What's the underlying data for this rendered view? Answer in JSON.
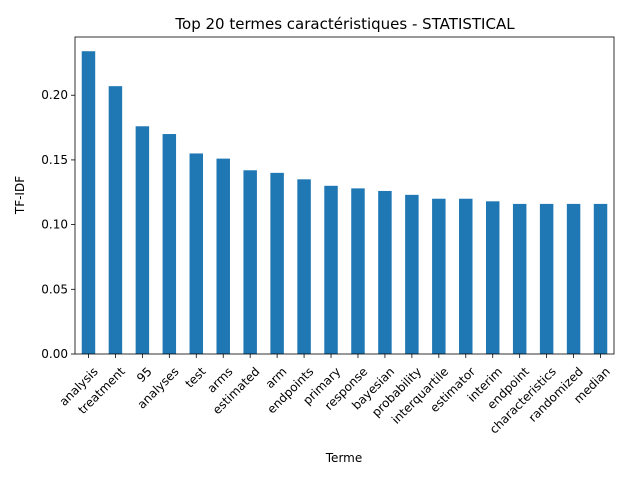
{
  "chart_data": {
    "type": "bar",
    "title": "Top 20 termes caractéristiques - STATISTICAL",
    "xlabel": "Terme",
    "ylabel": "TF-IDF",
    "ylim": [
      0,
      0.245
    ],
    "yticks": [
      0.0,
      0.05,
      0.1,
      0.15,
      0.2
    ],
    "ytick_labels": [
      "0.00",
      "0.05",
      "0.10",
      "0.15",
      "0.20"
    ],
    "categories": [
      "analysis",
      "treatment",
      "95",
      "analyses",
      "test",
      "arms",
      "estimated",
      "arm",
      "endpoints",
      "primary",
      "response",
      "bayesian",
      "probability",
      "interquartile",
      "estimator",
      "interim",
      "endpoint",
      "characteristics",
      "randomized",
      "median"
    ],
    "values": [
      0.234,
      0.207,
      0.176,
      0.17,
      0.155,
      0.151,
      0.142,
      0.14,
      0.135,
      0.13,
      0.128,
      0.126,
      0.123,
      0.12,
      0.12,
      0.118,
      0.116,
      0.116,
      0.116,
      0.116
    ],
    "bar_color": "#1f77b4",
    "grid": false,
    "legend": "none"
  }
}
